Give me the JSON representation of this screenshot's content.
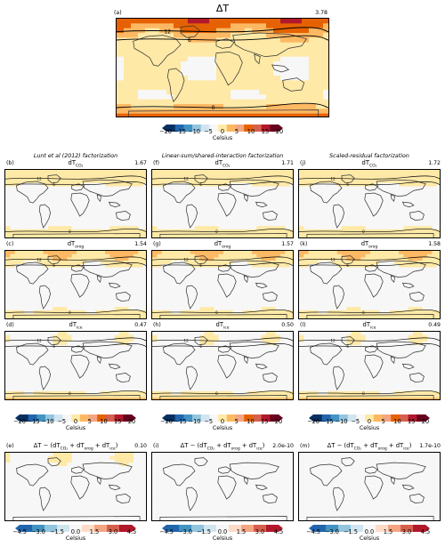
{
  "chart_data": [
    {
      "type": "heatmap",
      "panel_label": "(a)",
      "title": "ΔT",
      "value_label": "3.78",
      "field": "dT_total"
    },
    {
      "type": "heatmap",
      "column_title": "Lunt et al (2012) factorization",
      "panels": [
        {
          "panel_label": "(b)",
          "title_main": "dT",
          "title_sub": "CO₂",
          "value_label": "1.67",
          "field": "co2"
        },
        {
          "panel_label": "(c)",
          "title_main": "dT",
          "title_sub": "orog",
          "value_label": "1.54",
          "field": "orog"
        },
        {
          "panel_label": "(d)",
          "title_main": "dT",
          "title_sub": "ice",
          "value_label": "0.47",
          "field": "ice"
        },
        {
          "panel_label": "(e)",
          "title_residual": "ΔT − (dT",
          "value_label": "0.10",
          "field": "residual_lunt"
        }
      ]
    },
    {
      "type": "heatmap",
      "column_title": "Linear-sum/shared-interaction factorization",
      "panels": [
        {
          "panel_label": "(f)",
          "title_main": "dT",
          "title_sub": "CO₂",
          "value_label": "1.71",
          "field": "co2"
        },
        {
          "panel_label": "(g)",
          "title_main": "dT",
          "title_sub": "orog",
          "value_label": "1.57",
          "field": "orog"
        },
        {
          "panel_label": "(h)",
          "title_main": "dT",
          "title_sub": "ice",
          "value_label": "0.50",
          "field": "ice"
        },
        {
          "panel_label": "(i)",
          "title_residual": "ΔT − (dT",
          "value_label": "2.0e-10",
          "field": "residual_zero"
        }
      ]
    },
    {
      "type": "heatmap",
      "column_title": "Scaled-residual factorization",
      "panels": [
        {
          "panel_label": "(j)",
          "title_main": "dT",
          "title_sub": "CO₂",
          "value_label": "1.72",
          "field": "co2"
        },
        {
          "panel_label": "(k)",
          "title_main": "dT",
          "title_sub": "orog",
          "value_label": "1.58",
          "field": "orog"
        },
        {
          "panel_label": "(l)",
          "title_main": "dT",
          "title_sub": "ice",
          "value_label": "0.49",
          "field": "ice"
        },
        {
          "panel_label": "(m)",
          "title_residual": "ΔT − (dT",
          "value_label": "1.7e-10",
          "field": "residual_zero"
        }
      ]
    }
  ],
  "colorbars": {
    "main": {
      "ticks": [
        "−20",
        "−15",
        "−10",
        "−5",
        "0",
        "5",
        "10",
        "15",
        "20"
      ],
      "units": "Celsius",
      "range": [
        -20,
        20
      ]
    },
    "residual": {
      "ticks": [
        "−4.5",
        "−3.0",
        "−1.5",
        "0.0",
        "1.5",
        "3.0",
        "4.5"
      ],
      "units": "Celsius",
      "range": [
        -4.5,
        4.5
      ]
    }
  },
  "residual_subscripts": {
    "co2": "CO₂",
    "orog": "orog",
    "ice": "ice",
    "plus": " + dT",
    "close": ")"
  },
  "contour_labels": [
    "12",
    "6",
    "0"
  ],
  "colors": {
    "warm_strong": "#b2182b",
    "warm_mid": "#f4a582",
    "warm_light": "#fddbc7",
    "neutral": "#f7f7f7",
    "cool_light": "#d1e5f0",
    "cool_mid": "#92c5de",
    "cool_strong": "#2166ac",
    "main_bg": "#fbe6a6",
    "coast": "#333333"
  }
}
